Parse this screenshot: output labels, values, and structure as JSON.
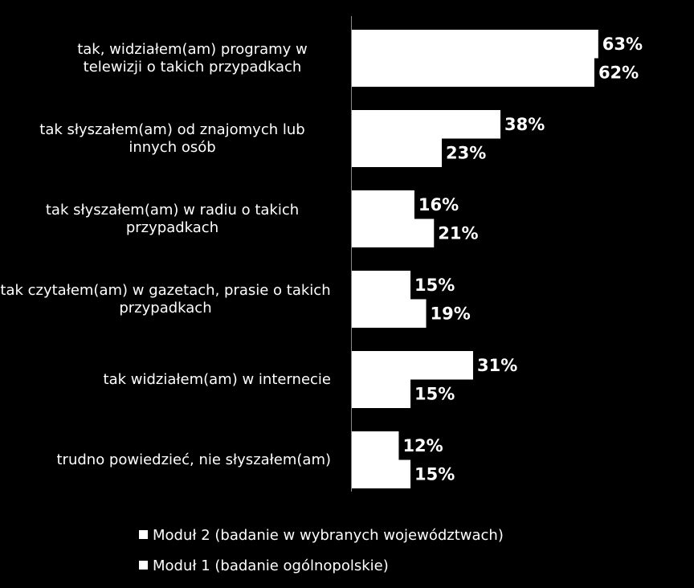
{
  "chart_data": {
    "type": "bar",
    "orientation": "horizontal",
    "categories": [
      "tak, widziałem(am) programy w telewizji o takich przypadkach",
      "tak słyszałem(am) od znajomych lub innych osób",
      "tak słyszałem(am) w radiu o takich przypadkach",
      "tak czytałem(am) w gazetach, prasie o takich przypadkach",
      "tak widziałem(am) w internecie",
      "trudno powiedzieć, nie słyszałem(am)"
    ],
    "series": [
      {
        "name": "Moduł 2 (badanie w wybranych województwach)",
        "color": "#ffffff",
        "values": [
          63,
          38,
          16,
          15,
          31,
          12
        ],
        "value_labels": [
          "63%",
          "38%",
          "16%",
          "15%",
          "31%",
          "12%"
        ]
      },
      {
        "name": "Moduł 1 (badanie ogólnopolskie)",
        "color": "#ffffff",
        "values": [
          62,
          23,
          21,
          19,
          15,
          15
        ],
        "value_labels": [
          "62%",
          "23%",
          "21%",
          "19%",
          "15%",
          "15%"
        ]
      }
    ]
  }
}
